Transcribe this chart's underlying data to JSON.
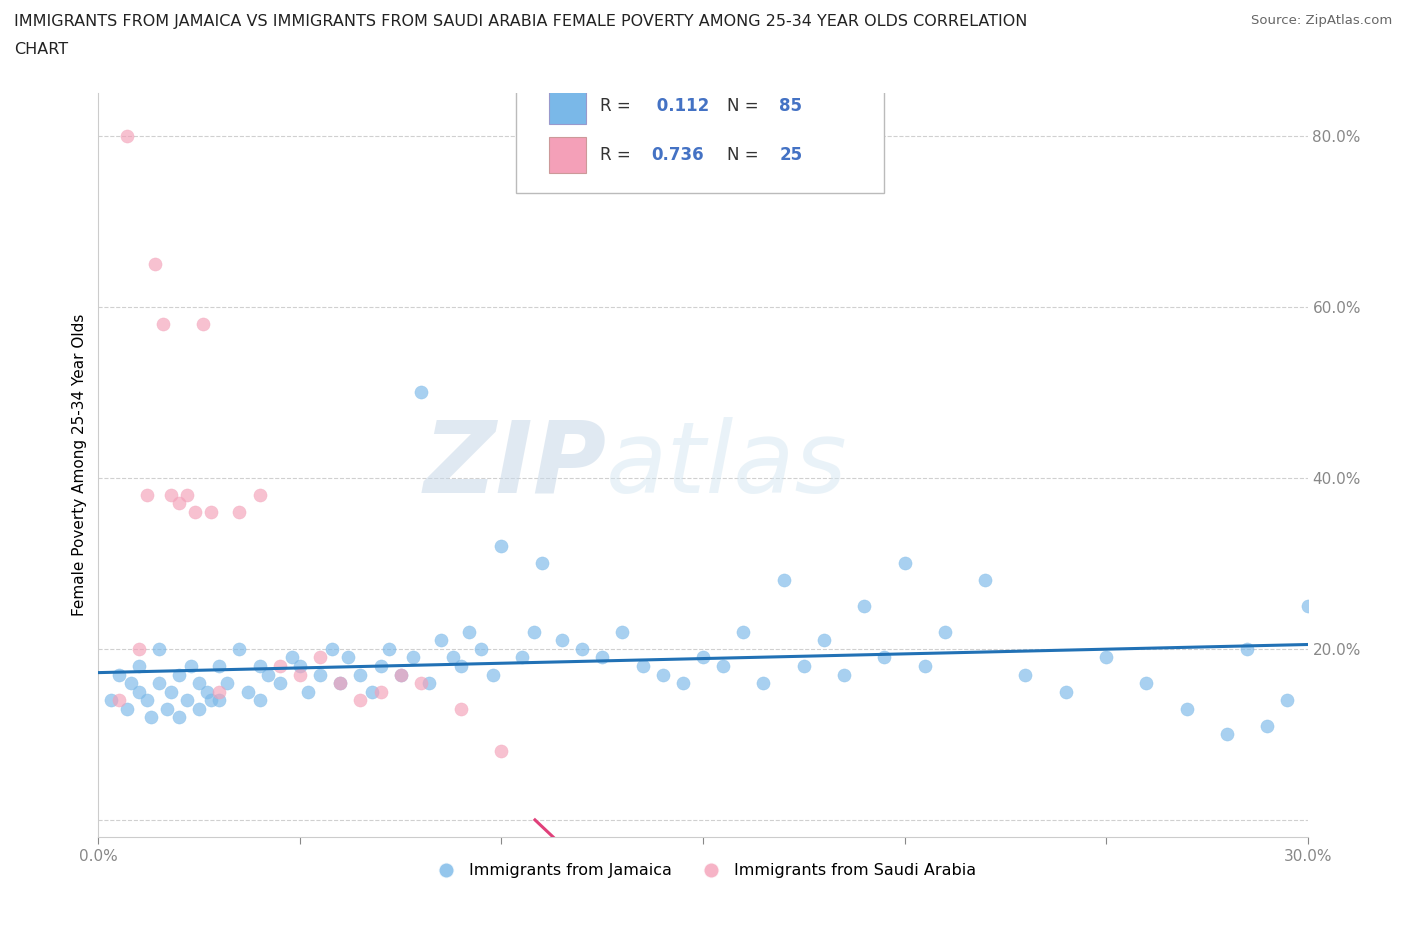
{
  "title_line1": "IMMIGRANTS FROM JAMAICA VS IMMIGRANTS FROM SAUDI ARABIA FEMALE POVERTY AMONG 25-34 YEAR OLDS CORRELATION",
  "title_line2": "CHART",
  "source": "Source: ZipAtlas.com",
  "ylabel": "Female Poverty Among 25-34 Year Olds",
  "xlim": [
    0.0,
    0.3
  ],
  "ylim": [
    -0.02,
    0.85
  ],
  "x_ticks": [
    0.0,
    0.05,
    0.1,
    0.15,
    0.2,
    0.25,
    0.3
  ],
  "x_tick_labels": [
    "0.0%",
    "",
    "",
    "",
    "",
    "",
    "30.0%"
  ],
  "y_ticks": [
    0.0,
    0.2,
    0.4,
    0.6,
    0.8
  ],
  "y_tick_labels": [
    "",
    "20.0%",
    "40.0%",
    "60.0%",
    "80.0%"
  ],
  "jamaica_color": "#7ab8e8",
  "saudi_color": "#f4a0b8",
  "jamaica_line_color": "#2171b5",
  "saudi_line_color": "#e0407a",
  "R_jamaica": 0.112,
  "N_jamaica": 85,
  "R_saudi": 0.736,
  "N_saudi": 25,
  "watermark_zip": "ZIP",
  "watermark_atlas": "atlas",
  "legend_jamaica": "Immigrants from Jamaica",
  "legend_saudi": "Immigrants from Saudi Arabia",
  "jamaica_x": [
    0.003,
    0.005,
    0.007,
    0.008,
    0.01,
    0.01,
    0.012,
    0.013,
    0.015,
    0.015,
    0.017,
    0.018,
    0.02,
    0.02,
    0.022,
    0.023,
    0.025,
    0.025,
    0.027,
    0.028,
    0.03,
    0.03,
    0.032,
    0.035,
    0.037,
    0.04,
    0.04,
    0.042,
    0.045,
    0.048,
    0.05,
    0.052,
    0.055,
    0.058,
    0.06,
    0.062,
    0.065,
    0.068,
    0.07,
    0.072,
    0.075,
    0.078,
    0.08,
    0.082,
    0.085,
    0.088,
    0.09,
    0.092,
    0.095,
    0.098,
    0.1,
    0.105,
    0.108,
    0.11,
    0.115,
    0.12,
    0.125,
    0.13,
    0.135,
    0.14,
    0.145,
    0.15,
    0.155,
    0.16,
    0.165,
    0.17,
    0.175,
    0.18,
    0.185,
    0.19,
    0.195,
    0.2,
    0.205,
    0.21,
    0.22,
    0.23,
    0.24,
    0.25,
    0.26,
    0.27,
    0.28,
    0.285,
    0.29,
    0.295,
    0.3
  ],
  "jamaica_y": [
    0.14,
    0.17,
    0.13,
    0.16,
    0.18,
    0.15,
    0.14,
    0.12,
    0.16,
    0.2,
    0.13,
    0.15,
    0.17,
    0.12,
    0.14,
    0.18,
    0.16,
    0.13,
    0.15,
    0.14,
    0.18,
    0.14,
    0.16,
    0.2,
    0.15,
    0.18,
    0.14,
    0.17,
    0.16,
    0.19,
    0.18,
    0.15,
    0.17,
    0.2,
    0.16,
    0.19,
    0.17,
    0.15,
    0.18,
    0.2,
    0.17,
    0.19,
    0.5,
    0.16,
    0.21,
    0.19,
    0.18,
    0.22,
    0.2,
    0.17,
    0.32,
    0.19,
    0.22,
    0.3,
    0.21,
    0.2,
    0.19,
    0.22,
    0.18,
    0.17,
    0.16,
    0.19,
    0.18,
    0.22,
    0.16,
    0.28,
    0.18,
    0.21,
    0.17,
    0.25,
    0.19,
    0.3,
    0.18,
    0.22,
    0.28,
    0.17,
    0.15,
    0.19,
    0.16,
    0.13,
    0.1,
    0.2,
    0.11,
    0.14,
    0.25
  ],
  "saudi_x": [
    0.005,
    0.007,
    0.01,
    0.012,
    0.014,
    0.016,
    0.018,
    0.02,
    0.022,
    0.024,
    0.026,
    0.028,
    0.03,
    0.035,
    0.04,
    0.045,
    0.05,
    0.055,
    0.06,
    0.065,
    0.07,
    0.075,
    0.08,
    0.09,
    0.1
  ],
  "saudi_y": [
    0.14,
    0.8,
    0.2,
    0.38,
    0.65,
    0.58,
    0.38,
    0.37,
    0.38,
    0.36,
    0.58,
    0.36,
    0.15,
    0.36,
    0.38,
    0.18,
    0.17,
    0.19,
    0.16,
    0.14,
    0.15,
    0.17,
    0.16,
    0.13,
    0.08
  ]
}
